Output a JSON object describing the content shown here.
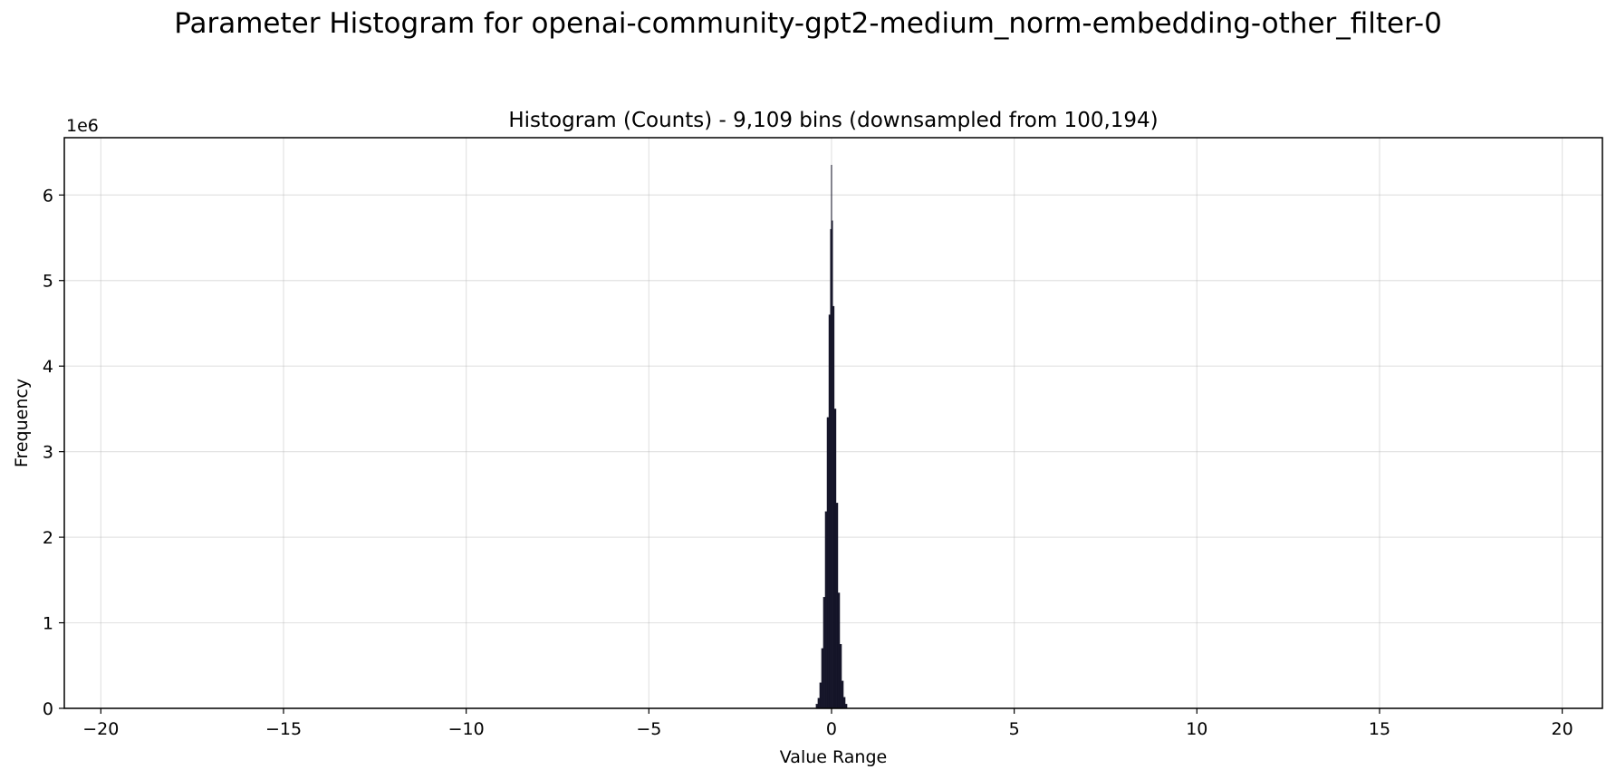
{
  "figure": {
    "suptitle": "Parameter Histogram for openai-community-gpt2-medium_norm-embedding-other_filter-0"
  },
  "chart_data": {
    "type": "bar",
    "title": "Histogram (Counts) - 9,109 bins (downsampled from 100,194)",
    "xlabel": "Value Range",
    "ylabel": "Frequency",
    "y_offset_label": "1e6",
    "xlim": [
      -21,
      21.1
    ],
    "ylim": [
      0,
      6.67
    ],
    "y_unit_multiplier": 1000000,
    "x_ticks": [
      -20,
      -15,
      -10,
      -5,
      0,
      5,
      10,
      15,
      20
    ],
    "x_tick_labels": [
      "−20",
      "−15",
      "−10",
      "−5",
      "0",
      "5",
      "10",
      "15",
      "20"
    ],
    "y_ticks": [
      0,
      1,
      2,
      3,
      4,
      5,
      6
    ],
    "y_tick_labels": [
      "0",
      "1",
      "2",
      "3",
      "4",
      "5",
      "6"
    ],
    "grid": true,
    "bar_color": "#141428",
    "series": [
      {
        "x": [
          -0.4,
          -0.35,
          -0.3,
          -0.25,
          -0.2,
          -0.15,
          -0.1,
          -0.05,
          -0.02,
          0,
          0.02,
          0.05,
          0.1,
          0.15,
          0.2,
          0.25,
          0.3,
          0.35,
          0.4
        ],
        "values": [
          0.05,
          0.12,
          0.3,
          0.7,
          1.3,
          2.3,
          3.4,
          4.6,
          5.6,
          6.35,
          5.7,
          4.7,
          3.5,
          2.4,
          1.35,
          0.75,
          0.32,
          0.13,
          0.05
        ]
      }
    ]
  }
}
